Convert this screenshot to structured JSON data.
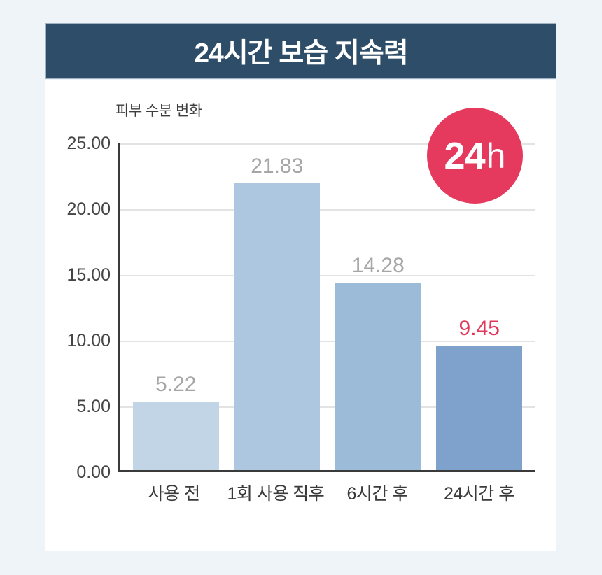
{
  "page": {
    "background_color": "#eff4f9"
  },
  "header": {
    "title": "24시간 보습 지속력",
    "background_color": "#2e4d68",
    "text_color": "#ffffff"
  },
  "badge": {
    "text_bold": "24",
    "text_light": "h",
    "background_color": "#e5395e",
    "text_color": "#ffffff"
  },
  "chart_data": {
    "type": "bar",
    "title": "24시간 보습 지속력",
    "ylabel": "피부 수분 변화",
    "xlabel": "",
    "categories": [
      "사용 전",
      "1회 사용 직후",
      "6시간 후",
      "24시간 후"
    ],
    "values": [
      5.22,
      21.83,
      14.28,
      9.45
    ],
    "value_labels": [
      "5.22",
      "21.83",
      "14.28",
      "9.45"
    ],
    "bar_colors": [
      "#c2d5e6",
      "#aec7e0",
      "#9cbbd9",
      "#7fa2cc"
    ],
    "value_label_colors": [
      "#a6a6a6",
      "#a6a6a6",
      "#a6a6a6",
      "#e0375a"
    ],
    "value_label_weights": [
      "400",
      "400",
      "400",
      "500"
    ],
    "ylim": [
      0,
      25
    ],
    "ytick_labels": [
      "25.00",
      "20.00",
      "15.00",
      "10.00",
      "5.00",
      "0.00"
    ],
    "ytick_values": [
      25,
      20,
      15,
      10,
      5,
      0
    ],
    "grid": true,
    "gridline_color": "#e3e3e3",
    "axis_color": "#3a3a3a",
    "legend": "none"
  }
}
